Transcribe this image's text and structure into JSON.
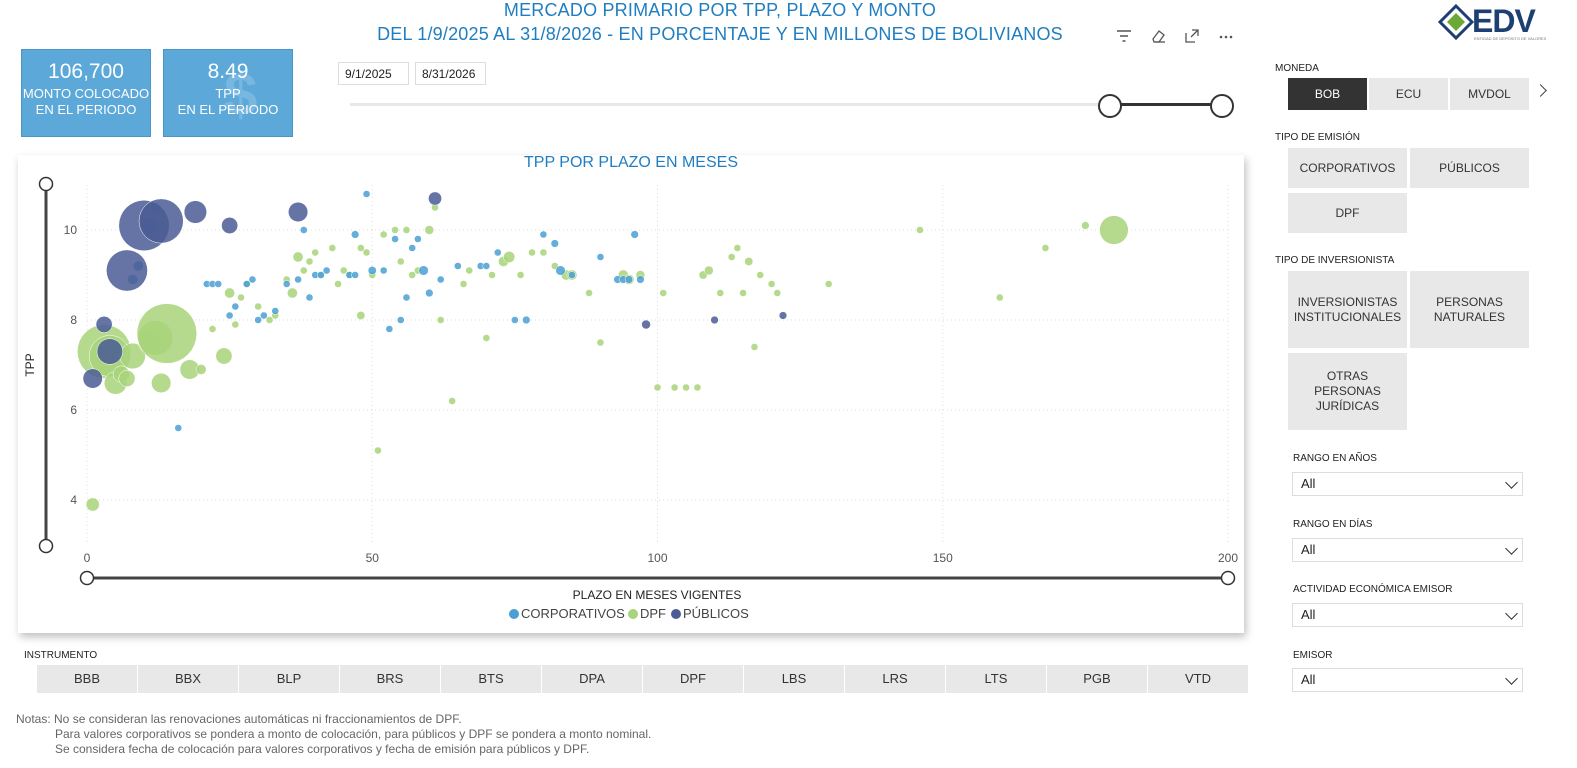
{
  "header": {
    "title_line1": "MERCADO PRIMARIO POR TPP, PLAZO Y MONTO",
    "title_line2": "DEL 1/9/2025 AL 31/8/2026 - EN PORCENTAJE Y EN MILLONES DE BOLIVIANOS",
    "icons": [
      "filter-icon",
      "eraser-icon",
      "expand-icon",
      "more-icon"
    ],
    "logo_text": "EDV",
    "logo_sub": "ENTIDAD DE DEPÓSITO DE VALORES"
  },
  "kpis": [
    {
      "value": "106,700",
      "label_line1": "MONTO COLOCADO",
      "label_line2": "EN EL PERIODO"
    },
    {
      "value": "8.49",
      "label_line1": "TPP",
      "label_line2": "EN EL PERIODO"
    }
  ],
  "date_filter": {
    "start": "9/1/2025",
    "end": "8/31/2026"
  },
  "colors": {
    "corporativos": "#4a9fd4",
    "dpf": "#a8d47a",
    "publicos": "#4a5c94",
    "accent": "#1f7ec1"
  },
  "chart_data": {
    "type": "scatter",
    "title": "TPP POR PLAZO EN MESES",
    "xlabel": "PLAZO EN MESES VIGENTES",
    "ylabel": "TPP",
    "xlim": [
      0,
      200
    ],
    "ylim": [
      3,
      11
    ],
    "x_ticks": [
      0,
      50,
      100,
      150,
      200
    ],
    "y_ticks": [
      4,
      6,
      8,
      10
    ],
    "grid": true,
    "legend_position": "bottom",
    "series": [
      {
        "name": "CORPORATIVOS",
        "points": [
          [
            12,
            10.5,
            1
          ],
          [
            11,
            10.1,
            2
          ],
          [
            9,
            9.2,
            1
          ],
          [
            8,
            8.9,
            1
          ],
          [
            21,
            8.8,
            0.5
          ],
          [
            22,
            8.8,
            0.5
          ],
          [
            23,
            8.8,
            0.5
          ],
          [
            25,
            8.1,
            0.5
          ],
          [
            26,
            8.3,
            0.5
          ],
          [
            28,
            8.8,
            0.5
          ],
          [
            29,
            8.9,
            0.5
          ],
          [
            30,
            8.0,
            0.5
          ],
          [
            31,
            8.1,
            0.5
          ],
          [
            33,
            8.2,
            0.5
          ],
          [
            35,
            8.8,
            0.5
          ],
          [
            37,
            8.9,
            0.5
          ],
          [
            38,
            10.0,
            0.5
          ],
          [
            39,
            8.5,
            0.5
          ],
          [
            40,
            9.0,
            0.5
          ],
          [
            41,
            9.0,
            0.5
          ],
          [
            42,
            9.1,
            0.5
          ],
          [
            46,
            9.0,
            0.5
          ],
          [
            47,
            9.0,
            0.5
          ],
          [
            47,
            9.9,
            0.6
          ],
          [
            49,
            10.8,
            0.5
          ],
          [
            50,
            9.1,
            0.7
          ],
          [
            52,
            9.1,
            0.5
          ],
          [
            53,
            7.8,
            0.5
          ],
          [
            54,
            9.8,
            0.5
          ],
          [
            55,
            8.0,
            0.5
          ],
          [
            56,
            8.5,
            0.5
          ],
          [
            57,
            9.6,
            0.5
          ],
          [
            58,
            9.8,
            0.5
          ],
          [
            59,
            9.1,
            0.9
          ],
          [
            60,
            8.6,
            0.6
          ],
          [
            62,
            8.9,
            0.5
          ],
          [
            65,
            9.2,
            0.5
          ],
          [
            69,
            9.2,
            0.5
          ],
          [
            70,
            9.2,
            0.5
          ],
          [
            72,
            9.5,
            0.5
          ],
          [
            75,
            8.0,
            0.5
          ],
          [
            77,
            8.0,
            0.6
          ],
          [
            80,
            9.9,
            0.5
          ],
          [
            82,
            9.7,
            0.6
          ],
          [
            83,
            9.1,
            0.9
          ],
          [
            85,
            9.0,
            0.5
          ],
          [
            90,
            9.4,
            0.5
          ],
          [
            93,
            8.9,
            0.6
          ],
          [
            94,
            8.9,
            0.6
          ],
          [
            95,
            8.9,
            0.6
          ],
          [
            96,
            9.9,
            0.6
          ],
          [
            97,
            8.9,
            0.6
          ],
          [
            16,
            5.6,
            0.5
          ]
        ]
      },
      {
        "name": "DPF",
        "points": [
          [
            1,
            3.9,
            1.5
          ],
          [
            3,
            7.3,
            8
          ],
          [
            4,
            7.2,
            6
          ],
          [
            5,
            6.6,
            3
          ],
          [
            6,
            6.8,
            2
          ],
          [
            7,
            6.7,
            2
          ],
          [
            8,
            7.2,
            3.5
          ],
          [
            11,
            7.5,
            3
          ],
          [
            13,
            6.6,
            2.5
          ],
          [
            12,
            7.6,
            5
          ],
          [
            14,
            7.7,
            9
          ],
          [
            18,
            6.9,
            2.5
          ],
          [
            20,
            6.9,
            1
          ],
          [
            22,
            7.8,
            0.5
          ],
          [
            24,
            7.2,
            2
          ],
          [
            25,
            8.6,
            1
          ],
          [
            26,
            7.9,
            0.5
          ],
          [
            27,
            8.5,
            0.5
          ],
          [
            28,
            8.8,
            0.5
          ],
          [
            30,
            8.3,
            0.5
          ],
          [
            32,
            8.0,
            0.5
          ],
          [
            33,
            8.1,
            0.5
          ],
          [
            35,
            8.9,
            0.5
          ],
          [
            36,
            8.6,
            1
          ],
          [
            37,
            9.4,
            1
          ],
          [
            38,
            9.1,
            0.5
          ],
          [
            39,
            9.3,
            0.5
          ],
          [
            40,
            9.5,
            0.5
          ],
          [
            41,
            9.0,
            0.5
          ],
          [
            43,
            9.6,
            0.5
          ],
          [
            44,
            8.8,
            0.5
          ],
          [
            45,
            9.1,
            0.5
          ],
          [
            46,
            9.0,
            0.5
          ],
          [
            48,
            8.1,
            0.7
          ],
          [
            48,
            9.6,
            0.5
          ],
          [
            49,
            9.5,
            0.5
          ],
          [
            50,
            9.0,
            0.5
          ],
          [
            51,
            5.1,
            0.5
          ],
          [
            52,
            9.9,
            0.5
          ],
          [
            54,
            10.0,
            0.5
          ],
          [
            55,
            9.3,
            0.5
          ],
          [
            56,
            10.0,
            0.5
          ],
          [
            57,
            9.0,
            0.5
          ],
          [
            58,
            9.1,
            0.5
          ],
          [
            60,
            10.0,
            0.8
          ],
          [
            61,
            10.5,
            0.5
          ],
          [
            62,
            8.0,
            0.5
          ],
          [
            64,
            6.2,
            0.5
          ],
          [
            66,
            8.8,
            0.5
          ],
          [
            67,
            9.1,
            0.5
          ],
          [
            70,
            7.6,
            0.5
          ],
          [
            71,
            9.0,
            0.5
          ],
          [
            73,
            9.3,
            1
          ],
          [
            74,
            9.4,
            1.2
          ],
          [
            76,
            9.0,
            0.5
          ],
          [
            78,
            9.5,
            0.5
          ],
          [
            80,
            9.5,
            0.5
          ],
          [
            82,
            9.2,
            0.5
          ],
          [
            84,
            9.0,
            1
          ],
          [
            85,
            9.0,
            1
          ],
          [
            88,
            8.6,
            0.5
          ],
          [
            90,
            7.5,
            0.5
          ],
          [
            94,
            9.0,
            1
          ],
          [
            95,
            8.9,
            1
          ],
          [
            97,
            9.0,
            0.8
          ],
          [
            100,
            6.5,
            0.5
          ],
          [
            101,
            8.6,
            0.5
          ],
          [
            103,
            6.5,
            0.5
          ],
          [
            105,
            6.5,
            0.5
          ],
          [
            107,
            6.5,
            0.5
          ],
          [
            108,
            9.0,
            0.7
          ],
          [
            109,
            9.1,
            0.8
          ],
          [
            111,
            8.6,
            0.5
          ],
          [
            113,
            9.4,
            0.5
          ],
          [
            114,
            9.6,
            0.5
          ],
          [
            115,
            8.6,
            0.5
          ],
          [
            116,
            9.3,
            0.7
          ],
          [
            117,
            7.4,
            0.5
          ],
          [
            118,
            9.0,
            0.5
          ],
          [
            120,
            8.8,
            0.5
          ],
          [
            121,
            8.6,
            0.5
          ],
          [
            130,
            8.8,
            0.5
          ],
          [
            146,
            10.0,
            0.5
          ],
          [
            160,
            8.5,
            0.5
          ],
          [
            168,
            9.6,
            0.5
          ],
          [
            175,
            10.1,
            0.6
          ],
          [
            180,
            10.0,
            4
          ]
        ]
      },
      {
        "name": "PÚBLICOS",
        "points": [
          [
            1,
            6.7,
            2.5
          ],
          [
            3,
            7.9,
            2
          ],
          [
            4,
            7.3,
            3.5
          ],
          [
            7,
            9.1,
            6
          ],
          [
            10,
            10.1,
            7.5
          ],
          [
            13,
            10.2,
            6.5
          ],
          [
            19,
            10.4,
            3
          ],
          [
            25,
            10.1,
            2
          ],
          [
            37,
            10.4,
            2.5
          ],
          [
            61,
            10.7,
            1.5
          ],
          [
            98,
            7.9,
            0.8
          ],
          [
            110,
            8.0,
            0.6
          ],
          [
            122,
            8.1,
            0.6
          ]
        ]
      }
    ]
  },
  "slicers": {
    "moneda": {
      "label": "MONEDA",
      "options": [
        "BOB",
        "ECU",
        "MVDOL"
      ],
      "selected": "BOB"
    },
    "tipo_emision": {
      "label": "TIPO DE EMISIÓN",
      "options": [
        "CORPORATIVOS",
        "PÚBLICOS",
        "DPF"
      ]
    },
    "tipo_inversionista": {
      "label": "TIPO DE INVERSIONISTA",
      "options": [
        {
          "l1": "INVERSIONISTAS",
          "l2": "INSTITUCIONALES",
          "l3": ""
        },
        {
          "l1": "PERSONAS",
          "l2": "NATURALES",
          "l3": ""
        },
        {
          "l1": "OTRAS",
          "l2": "PERSONAS",
          "l3": "JURÍDICAS"
        }
      ]
    },
    "rango_anios": {
      "label": "RANGO EN AÑOS",
      "value": "All"
    },
    "rango_dias": {
      "label": "RANGO EN DÍAS",
      "value": "All"
    },
    "actividad": {
      "label": "ACTIVIDAD ECONÓMICA EMISOR",
      "value": "All"
    },
    "emisor": {
      "label": "EMISOR",
      "value": "All"
    }
  },
  "instrumento": {
    "label": "INSTRUMENTO",
    "options": [
      "BBB",
      "BBX",
      "BLP",
      "BRS",
      "BTS",
      "DPA",
      "DPF",
      "LBS",
      "LRS",
      "LTS",
      "PGB",
      "VTD"
    ]
  },
  "notes": {
    "line1": "Notas: No se consideran las renovaciones automáticas ni fraccionamientos de DPF.",
    "line2": "Para valores corporativos se pondera a monto de colocación, para públicos y DPF se pondera a monto nominal.",
    "line3": "Se considera fecha de colocación para valores corporativos y fecha de emisión para públicos y DPF."
  }
}
